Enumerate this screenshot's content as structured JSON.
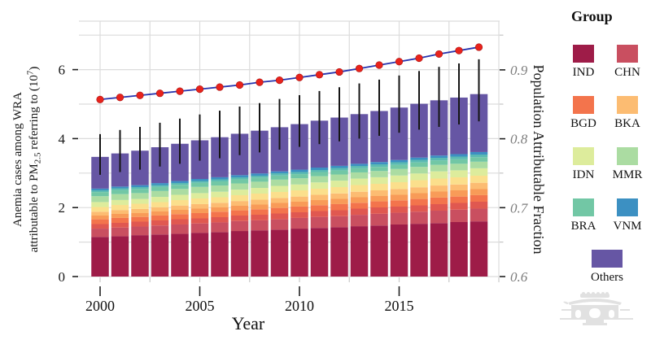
{
  "figure": {
    "x_label": "Year",
    "y_left_line1": "Anemia cases among WRA",
    "y_left_line2_pre": "attributable to PM",
    "y_left_sub": "2.5",
    "y_left_line2_mid": " referring to (10",
    "y_left_sup": "7",
    "y_left_line2_close": ")",
    "y_right_label": "Population Attributable Fraction"
  },
  "legend": {
    "title": "Group"
  },
  "chart_data": {
    "type": "bar",
    "subtype": "stacked bars with error bars + line on secondary axis",
    "x": [
      2000,
      2001,
      2002,
      2003,
      2004,
      2005,
      2006,
      2007,
      2008,
      2009,
      2010,
      2011,
      2012,
      2013,
      2014,
      2015,
      2016,
      2017,
      2018,
      2019
    ],
    "x_ticks": [
      2000,
      2005,
      2010,
      2015
    ],
    "xlabel": "Year",
    "ylabel_left": "Anemia cases among WRA attributable to PM2.5 referring to (10^7)",
    "ylabel_right": "Population Attributable Fraction",
    "y_left_ticks": [
      0,
      2,
      4,
      6
    ],
    "y_left_lim": [
      0,
      7.4
    ],
    "y_right_ticks": [
      0.6,
      0.7,
      0.8,
      0.9
    ],
    "y_right_lim": [
      0.6,
      0.971
    ],
    "grid": "light gray major+minor",
    "legend_position": "right",
    "series": [
      {
        "name": "IND",
        "color": "#9E1C48",
        "values": [
          1.15,
          1.17,
          1.2,
          1.22,
          1.24,
          1.27,
          1.29,
          1.32,
          1.34,
          1.36,
          1.39,
          1.41,
          1.43,
          1.46,
          1.48,
          1.51,
          1.53,
          1.55,
          1.58,
          1.6
        ]
      },
      {
        "name": "CHN",
        "color": "#C94F60",
        "values": [
          0.24,
          0.25,
          0.25,
          0.26,
          0.27,
          0.27,
          0.28,
          0.29,
          0.29,
          0.3,
          0.31,
          0.32,
          0.32,
          0.33,
          0.34,
          0.34,
          0.35,
          0.36,
          0.36,
          0.37
        ]
      },
      {
        "name": "BGD",
        "color": "#F3744C",
        "color2": "#E05850",
        "values": [
          0.27,
          0.28,
          0.28,
          0.29,
          0.3,
          0.3,
          0.31,
          0.31,
          0.32,
          0.33,
          0.33,
          0.34,
          0.35,
          0.35,
          0.36,
          0.36,
          0.37,
          0.38,
          0.38,
          0.39
        ]
      },
      {
        "name": "BKA",
        "color": "#FCBC72",
        "color2": "#F89B58",
        "values": [
          0.22,
          0.23,
          0.23,
          0.24,
          0.25,
          0.26,
          0.26,
          0.27,
          0.28,
          0.29,
          0.29,
          0.3,
          0.31,
          0.32,
          0.32,
          0.33,
          0.34,
          0.35,
          0.35,
          0.36
        ]
      },
      {
        "name": "IDN",
        "color": "#DDEC9C",
        "color2": "#FBDF8C",
        "values": [
          0.28,
          0.29,
          0.29,
          0.3,
          0.31,
          0.32,
          0.32,
          0.33,
          0.34,
          0.35,
          0.35,
          0.36,
          0.37,
          0.38,
          0.38,
          0.39,
          0.4,
          0.41,
          0.41,
          0.42
        ]
      },
      {
        "name": "MMR",
        "color": "#ABDCA2",
        "values": [
          0.17,
          0.17,
          0.17,
          0.17,
          0.17,
          0.18,
          0.18,
          0.18,
          0.18,
          0.18,
          0.18,
          0.18,
          0.18,
          0.18,
          0.18,
          0.19,
          0.19,
          0.19,
          0.19,
          0.19
        ]
      },
      {
        "name": "BRA",
        "color": "#72C7A5",
        "values": [
          0.12,
          0.12,
          0.12,
          0.12,
          0.12,
          0.12,
          0.12,
          0.12,
          0.12,
          0.12,
          0.12,
          0.12,
          0.12,
          0.12,
          0.12,
          0.12,
          0.13,
          0.13,
          0.13,
          0.13
        ]
      },
      {
        "name": "VNM",
        "color": "#3C90C2",
        "color2": "#5BBAB2",
        "values": [
          0.1,
          0.1,
          0.11,
          0.11,
          0.11,
          0.11,
          0.12,
          0.12,
          0.12,
          0.12,
          0.13,
          0.13,
          0.13,
          0.13,
          0.14,
          0.14,
          0.14,
          0.14,
          0.15,
          0.15
        ]
      },
      {
        "name": "Others",
        "color": "#6656A4",
        "values": [
          0.92,
          0.96,
          1.0,
          1.04,
          1.08,
          1.12,
          1.16,
          1.2,
          1.24,
          1.28,
          1.32,
          1.36,
          1.4,
          1.44,
          1.48,
          1.52,
          1.56,
          1.6,
          1.64,
          1.68
        ]
      }
    ],
    "error_low": [
      2.95,
      3.03,
      3.1,
      3.19,
      3.27,
      3.36,
      3.43,
      3.52,
      3.6,
      3.68,
      3.76,
      3.84,
      3.92,
      4.0,
      4.08,
      4.17,
      4.26,
      4.34,
      4.41,
      4.5
    ],
    "error_high": [
      4.13,
      4.25,
      4.34,
      4.46,
      4.58,
      4.7,
      4.81,
      4.93,
      5.03,
      5.15,
      5.26,
      5.38,
      5.49,
      5.6,
      5.71,
      5.83,
      5.96,
      6.08,
      6.18,
      6.3
    ],
    "paf_line": {
      "name": "Population Attributable Fraction",
      "line_color": "#2733AE",
      "point_color": "#E8231C",
      "values": [
        0.857,
        0.86,
        0.863,
        0.866,
        0.869,
        0.872,
        0.875,
        0.878,
        0.882,
        0.885,
        0.889,
        0.893,
        0.897,
        0.902,
        0.907,
        0.912,
        0.917,
        0.923,
        0.928,
        0.933
      ]
    },
    "colors": {
      "gridline": "#DCDCDC",
      "error_bar": "#151515",
      "right_tick_label": "#7D7D7D"
    }
  }
}
